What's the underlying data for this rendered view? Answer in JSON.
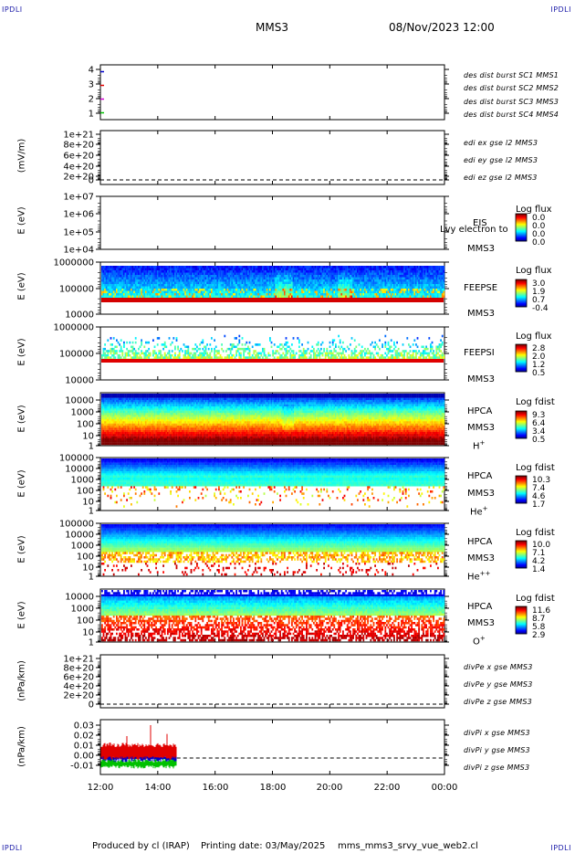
{
  "header": {
    "corner_label": "IPDLI",
    "spacecraft": "MMS3",
    "date_time": "08/Nov/2023 12:00"
  },
  "footer": {
    "produced_by": "Produced by cl (IRAP)",
    "printing_date": "Printing date: 03/May/2025",
    "script_name": "mms_mms3_srvy_vue_web2.cl"
  },
  "colors": {
    "blue": "#0000c8",
    "magenta": "#d000d0",
    "red": "#e00000",
    "green": "#00c000"
  },
  "chart_data": [
    {
      "type": "line",
      "panel": "burst",
      "yticks": [
        "4",
        "3",
        "2",
        "1"
      ],
      "ylim": [
        0.5,
        4.5
      ],
      "series": [
        {
          "name": "des dist burst SC1 MMS1",
          "color": "#0000c8",
          "x": [
            "12:00"
          ],
          "y": [
            4
          ]
        },
        {
          "name": "des dist burst SC2 MMS2",
          "color": "#d000d0",
          "x": [
            "12:00"
          ],
          "y": [
            2
          ]
        },
        {
          "name": "des dist burst SC3 MMS3",
          "color": "#e00000",
          "x": [
            "12:00"
          ],
          "y": [
            3
          ]
        },
        {
          "name": "des dist burst SC4 MMS4",
          "color": "#00c000",
          "x": [
            "12:00"
          ],
          "y": [
            1
          ]
        }
      ]
    },
    {
      "type": "line",
      "panel": "edi",
      "ylabel": "(mV/m)",
      "yticks": [
        "1e+21",
        "8e+20",
        "6e+20",
        "4e+20",
        "2e+20",
        "0"
      ],
      "series_labels": [
        "edi ex gse l2 MMS3",
        "edi ey gse l2 MMS3",
        "edi ez gse l2 MMS3"
      ],
      "series_colors": [
        "#e00000",
        "#00c000",
        "#0000c8"
      ]
    },
    {
      "type": "heatmap",
      "panel": "eis",
      "ylabel": "E (eV)",
      "yticks": [
        "1e+07",
        "1e+06",
        "1e+05",
        "1e+04"
      ],
      "label_top": "EIS",
      "label_mid": "Lvy electron to",
      "label_bottom": "MMS3",
      "colorbar_title": "Log flux",
      "colorbar_ticks": [
        "0.0",
        "0.0",
        "0.0",
        "0.0"
      ]
    },
    {
      "type": "heatmap",
      "panel": "feepse",
      "ylabel": "E (eV)",
      "yticks": [
        "1000000",
        "100000",
        "10000"
      ],
      "label_top": "FEEPSE",
      "label_bottom": "MMS3",
      "colorbar_title": "Log flux",
      "colorbar_ticks": [
        "3.0",
        "1.9",
        "0.7",
        "-0.4"
      ],
      "time_coverage": [
        "12:00",
        "00:00"
      ]
    },
    {
      "type": "heatmap",
      "panel": "feepsi",
      "ylabel": "E (eV)",
      "yticks": [
        "1000000",
        "100000",
        "10000"
      ],
      "label_top": "FEEPSI",
      "label_bottom": "MMS3",
      "colorbar_title": "Log flux",
      "colorbar_ticks": [
        "2.8",
        "2.0",
        "1.2",
        "0.5"
      ],
      "time_coverage": [
        "12:00",
        "00:00"
      ]
    },
    {
      "type": "heatmap",
      "panel": "hpca_h",
      "ylabel": "E (eV)",
      "yticks": [
        "10000",
        "1000",
        "100",
        "10",
        "1"
      ],
      "label_top": "HPCA",
      "label_mid": "MMS3",
      "species": "H",
      "species_sup": "+",
      "colorbar_title": "Log fdist",
      "colorbar_ticks": [
        "9.3",
        "6.4",
        "3.4",
        "0.5"
      ]
    },
    {
      "type": "heatmap",
      "panel": "hpca_he",
      "ylabel": "E (eV)",
      "yticks": [
        "100000",
        "10000",
        "1000",
        "100",
        "10",
        "1"
      ],
      "label_top": "HPCA",
      "label_mid": "MMS3",
      "species": "He",
      "species_sup": "+",
      "colorbar_title": "Log fdist",
      "colorbar_ticks": [
        "10.3",
        "7.4",
        "4.6",
        "1.7"
      ]
    },
    {
      "type": "heatmap",
      "panel": "hpca_hepp",
      "ylabel": "E (eV)",
      "yticks": [
        "100000",
        "10000",
        "1000",
        "100",
        "10",
        "1"
      ],
      "label_top": "HPCA",
      "label_mid": "MMS3",
      "species": "He",
      "species_sup": "++",
      "colorbar_title": "Log fdist",
      "colorbar_ticks": [
        "10.0",
        "7.1",
        "4.2",
        "1.4"
      ]
    },
    {
      "type": "heatmap",
      "panel": "hpca_o",
      "ylabel": "E (eV)",
      "yticks": [
        "10000",
        "1000",
        "100",
        "10",
        "1"
      ],
      "label_top": "HPCA",
      "label_mid": "MMS3",
      "species": "O",
      "species_sup": "+",
      "colorbar_title": "Log fdist",
      "colorbar_ticks": [
        "11.6",
        "8.7",
        "5.8",
        "2.9"
      ]
    },
    {
      "type": "line",
      "panel": "divpe",
      "ylabel": "(nPa/km)",
      "yticks": [
        "1e+21",
        "8e+20",
        "6e+20",
        "4e+20",
        "2e+20",
        "0"
      ],
      "series_labels": [
        "divPe x gse MMS3",
        "divPe y gse MMS3",
        "divPe z gse MMS3"
      ],
      "series_colors": [
        "#e00000",
        "#00c000",
        "#0000c8"
      ]
    },
    {
      "type": "line",
      "panel": "divpi",
      "ylabel": "(nPa/km)",
      "yticks": [
        "0.03",
        "0.02",
        "0.01",
        "0.00",
        "-0.01"
      ],
      "ylim": [
        -0.015,
        0.035
      ],
      "series_labels": [
        "divPi x gse MMS3",
        "divPi y gse MMS3",
        "divPi z gse MMS3"
      ],
      "series_colors": [
        "#e00000",
        "#00c000",
        "#0000c8"
      ],
      "data_end": "14:40",
      "typical_range": {
        "x": [
          0.0,
          0.012
        ],
        "y": [
          -0.008,
          -0.002
        ],
        "z": [
          -0.002,
          0.003
        ]
      }
    }
  ],
  "xaxis": {
    "ticks": [
      "12:00",
      "14:00",
      "16:00",
      "18:00",
      "20:00",
      "22:00",
      "00:00"
    ]
  }
}
